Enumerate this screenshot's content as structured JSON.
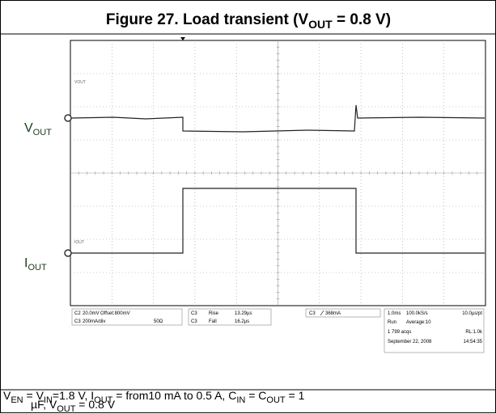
{
  "title": {
    "parts": [
      "Figure 27. Load transient (V",
      "OUT",
      " = 0.8 V)"
    ]
  },
  "channel_labels": [
    {
      "main": "V",
      "sub": "OUT"
    },
    {
      "main": "I",
      "sub": "OUT"
    }
  ],
  "screen_labels": [
    "VOUT",
    "IOUT"
  ],
  "status": {
    "ch2": {
      "name": "C2",
      "scale": "20.0mV",
      "offset": "Offset:800mV"
    },
    "ch3": {
      "name": "C3",
      "scale": "200mA/div",
      "impedance": "50Ω"
    },
    "rise": {
      "channel": "C3",
      "label": "Rise",
      "value": "13.29µs"
    },
    "fall": {
      "channel": "C3",
      "label": "Fall",
      "value": "16.2µs"
    },
    "trigger": {
      "channel": "C3",
      "level": "368mA"
    },
    "timebase": {
      "scale": "1.0ms",
      "rate": "100.0kS/s",
      "resolution": "10.0µs/pt"
    },
    "acquisition": {
      "mode": "Run",
      "average": "Average:10",
      "count": "1 799 acqs",
      "record_length": "RL:1.0k"
    },
    "date": "September 22, 2008",
    "time": "14:54:35"
  },
  "caption": {
    "parts": [
      "V",
      "EN",
      " = V",
      "IN",
      "=1.8 V, I",
      "OUT",
      " = from10 mA to 0.5 A, C",
      "IN",
      " = C",
      "OUT",
      " = 1",
      "µF, V",
      "OUT",
      " = 0.8 V"
    ]
  }
}
